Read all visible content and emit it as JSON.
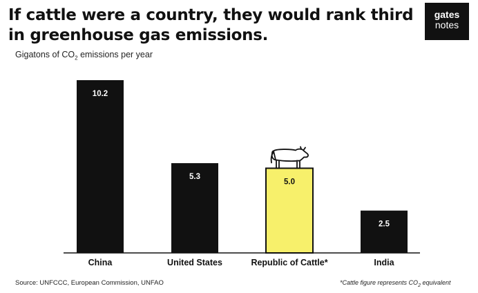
{
  "header": {
    "title": "If cattle were a country, they would rank third in greenhouse gas emissions.",
    "logo_line1": "gates",
    "logo_line2": "notes"
  },
  "footer": {
    "source": "Source: UNFCCC, European Commission, UNFAO",
    "footnote_pre": "*Cattle figure represents CO",
    "footnote_sub": "2",
    "footnote_post": " equivalent"
  },
  "colors": {
    "bar": "#111111",
    "highlight": "#f7f06b",
    "label_on_dark": "#ffffff",
    "label_on_light": "#111111"
  },
  "chart_data": {
    "type": "bar",
    "title": "If cattle were a country, they would rank third in greenhouse gas emissions.",
    "ylabel_pre": "Gigatons of CO",
    "ylabel_sub": "2",
    "ylabel_post": " emissions per year",
    "categories": [
      "China",
      "United States",
      "Republic of Cattle*",
      "India"
    ],
    "values": [
      10.2,
      5.3,
      5.0,
      2.5
    ],
    "value_labels": [
      "10.2",
      "5.3",
      "5.0",
      "2.5"
    ],
    "highlight_index": 2,
    "highlight_icon": "cow-icon",
    "ylim": [
      0,
      10.2
    ],
    "grid": false,
    "legend": "none"
  }
}
